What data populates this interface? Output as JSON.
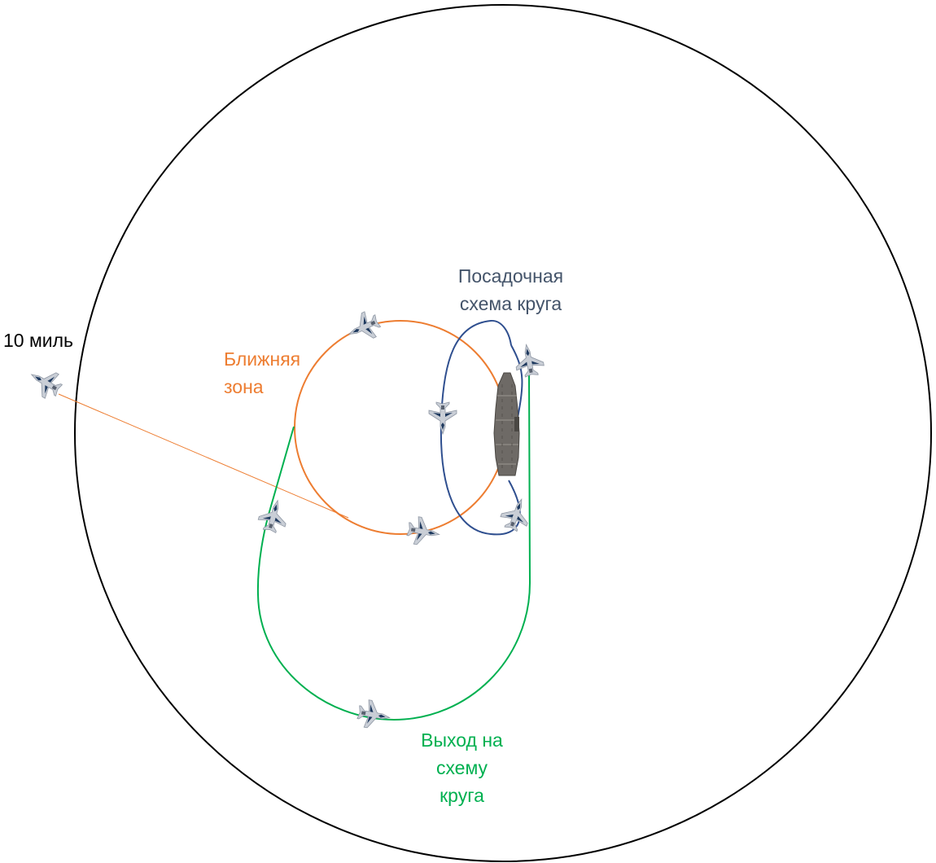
{
  "labels": {
    "outer_radius": "10 миль",
    "near_zone_line1": "Ближняя",
    "near_zone_line2": "зона",
    "pattern_line1": "Посадочная",
    "pattern_line2": "схема круга",
    "exit_line1": "Выход на",
    "exit_line2": "схему",
    "exit_line3": "круга"
  },
  "colors": {
    "outer_circle": "#000000",
    "near_zone": "#ED7D31",
    "landing_pattern": "#2F4F8F",
    "exit_path": "#00B050",
    "pattern_label": "#44546A",
    "carrier": "#6e6a66",
    "aircraft": "#c9ced6",
    "aircraft_accent": "#1f3a5f"
  },
  "icons": {
    "aircraft": "fighter-jet-icon",
    "carrier": "aircraft-carrier-icon"
  }
}
